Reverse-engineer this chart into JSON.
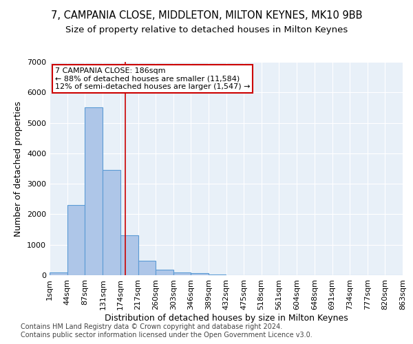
{
  "title": "7, CAMPANIA CLOSE, MIDDLETON, MILTON KEYNES, MK10 9BB",
  "subtitle": "Size of property relative to detached houses in Milton Keynes",
  "xlabel": "Distribution of detached houses by size in Milton Keynes",
  "ylabel": "Number of detached properties",
  "footer1": "Contains HM Land Registry data © Crown copyright and database right 2024.",
  "footer2": "Contains public sector information licensed under the Open Government Licence v3.0.",
  "bar_values": [
    100,
    2300,
    5500,
    3450,
    1300,
    480,
    170,
    100,
    70,
    30,
    10,
    5,
    2,
    1,
    0,
    0,
    0,
    0,
    0,
    0
  ],
  "bin_edges": [
    1,
    44,
    87,
    131,
    174,
    217,
    260,
    303,
    346,
    389,
    432,
    475,
    518,
    561,
    604,
    648,
    691,
    734,
    777,
    820,
    863
  ],
  "x_tick_labels": [
    "1sqm",
    "44sqm",
    "87sqm",
    "131sqm",
    "174sqm",
    "217sqm",
    "260sqm",
    "303sqm",
    "346sqm",
    "389sqm",
    "432sqm",
    "475sqm",
    "518sqm",
    "561sqm",
    "604sqm",
    "648sqm",
    "691sqm",
    "734sqm",
    "777sqm",
    "820sqm",
    "863sqm"
  ],
  "bar_color": "#aec6e8",
  "bar_edge_color": "#5b9bd5",
  "vline_x": 186,
  "vline_color": "#cc0000",
  "annotation_line1": "7 CAMPANIA CLOSE: 186sqm",
  "annotation_line2": "← 88% of detached houses are smaller (11,584)",
  "annotation_line3": "12% of semi-detached houses are larger (1,547) →",
  "annotation_box_color": "#cc0000",
  "ylim": [
    0,
    7000
  ],
  "yticks": [
    0,
    1000,
    2000,
    3000,
    4000,
    5000,
    6000,
    7000
  ],
  "background_color": "#e8f0f8",
  "grid_color": "#ffffff",
  "title_fontsize": 10.5,
  "subtitle_fontsize": 9.5,
  "ylabel_fontsize": 9,
  "xlabel_fontsize": 9,
  "tick_fontsize": 8,
  "annotation_fontsize": 8,
  "footer_fontsize": 7
}
